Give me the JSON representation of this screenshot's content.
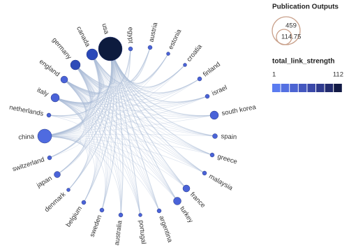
{
  "nodes": [
    {
      "label": "usa"
    },
    {
      "label": "egypt"
    },
    {
      "label": "austria"
    },
    {
      "label": "estonia"
    },
    {
      "label": "croatia"
    },
    {
      "label": "finland"
    },
    {
      "label": "israel"
    },
    {
      "label": "south korea"
    },
    {
      "label": "spain"
    },
    {
      "label": "greece"
    },
    {
      "label": "malaysia"
    },
    {
      "label": "france"
    },
    {
      "label": "turkey"
    },
    {
      "label": "argentina"
    },
    {
      "label": "portugal"
    },
    {
      "label": "australia"
    },
    {
      "label": "sweden"
    },
    {
      "label": "belgium"
    },
    {
      "label": "denmark"
    },
    {
      "label": "japan"
    },
    {
      "label": "switzerland"
    },
    {
      "label": "china"
    },
    {
      "label": "netherlands"
    },
    {
      "label": "italy"
    },
    {
      "label": "england"
    },
    {
      "label": "germany"
    },
    {
      "label": "canada"
    }
  ],
  "legend": {
    "size_title": "Publication Outputs",
    "size_max": "459",
    "size_mid": "114.75",
    "color_title": "total_link_strength",
    "color_min": "1",
    "color_max": "112"
  }
}
